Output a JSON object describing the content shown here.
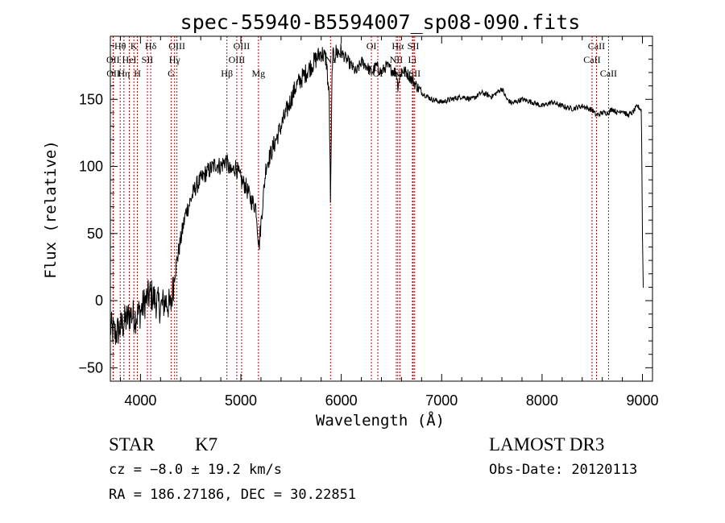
{
  "chart_data": {
    "type": "line",
    "title": "spec-55940-B5594007_sp08-090.fits",
    "xlabel": "Wavelength (Å)",
    "ylabel": "Flux (relative)",
    "xlim": [
      3700,
      9100
    ],
    "ylim": [
      -60,
      197
    ],
    "xticks": [
      4000,
      5000,
      6000,
      7000,
      8000,
      9000
    ],
    "xtick_labels": [
      "4000",
      "5000",
      "6000",
      "7000",
      "8000",
      "9000"
    ],
    "yticks": [
      -50,
      0,
      50,
      100,
      150
    ],
    "ytick_labels": [
      "−50",
      "0",
      "50",
      "100",
      "150"
    ],
    "line_color": "#000000",
    "marker_color": "#cc0000",
    "spectrum_anchor_points": {
      "wavelength": [
        3700,
        3750,
        3800,
        3850,
        3900,
        3950,
        4000,
        4050,
        4100,
        4150,
        4200,
        4250,
        4300,
        4340,
        4400,
        4450,
        4500,
        4550,
        4600,
        4650,
        4700,
        4750,
        4800,
        4850,
        4900,
        4950,
        5000,
        5050,
        5100,
        5150,
        5180,
        5250,
        5300,
        5350,
        5400,
        5450,
        5500,
        5550,
        5600,
        5650,
        5700,
        5750,
        5800,
        5850,
        5880,
        5893,
        5910,
        5950,
        6000,
        6050,
        6100,
        6150,
        6200,
        6250,
        6300,
        6350,
        6400,
        6450,
        6500,
        6550,
        6563,
        6600,
        6650,
        6700,
        6750,
        6800,
        6900,
        7000,
        7100,
        7200,
        7300,
        7400,
        7500,
        7600,
        7650,
        7700,
        7800,
        7900,
        8000,
        8100,
        8200,
        8300,
        8400,
        8500,
        8542,
        8600,
        8662,
        8700,
        8750,
        8800,
        8850,
        8900,
        8950,
        8990,
        9000,
        9010
      ],
      "flux": [
        -20,
        -25,
        -20,
        -15,
        -10,
        -12,
        -8,
        0,
        5,
        0,
        -5,
        0,
        -5,
        20,
        45,
        65,
        75,
        85,
        90,
        95,
        98,
        102,
        100,
        105,
        95,
        100,
        90,
        85,
        75,
        70,
        40,
        100,
        110,
        120,
        130,
        140,
        150,
        160,
        165,
        170,
        175,
        180,
        185,
        180,
        150,
        70,
        180,
        185,
        185,
        180,
        175,
        170,
        178,
        175,
        170,
        175,
        170,
        175,
        172,
        170,
        160,
        172,
        170,
        165,
        160,
        155,
        150,
        148,
        150,
        152,
        150,
        155,
        152,
        158,
        150,
        147,
        150,
        148,
        145,
        148,
        145,
        143,
        145,
        142,
        138,
        140,
        140,
        143,
        140,
        142,
        138,
        140,
        145,
        142,
        50,
        0
      ]
    },
    "annotations": [
      {
        "label": "Hθ",
        "wavelength": 3798,
        "row": 1
      },
      {
        "label": "OII",
        "wavelength": 3727,
        "row": 2
      },
      {
        "label": "OII",
        "wavelength": 3729,
        "row": 3
      },
      {
        "label": "K",
        "wavelength": 3934,
        "row": 1
      },
      {
        "label": "HeI",
        "wavelength": 3889,
        "row": 2
      },
      {
        "label": "Hη",
        "wavelength": 3835,
        "row": 3
      },
      {
        "label": "Hδ",
        "wavelength": 4102,
        "row": 1
      },
      {
        "label": "SII",
        "wavelength": 4069,
        "row": 2
      },
      {
        "label": "H",
        "wavelength": 3969,
        "row": 3
      },
      {
        "label": "OIII",
        "wavelength": 4363,
        "row": 1
      },
      {
        "label": "Hγ",
        "wavelength": 4340,
        "row": 2
      },
      {
        "label": "G",
        "wavelength": 4305,
        "row": 3
      },
      {
        "label": "OIII",
        "wavelength": 5007,
        "row": 1
      },
      {
        "label": "OIII",
        "wavelength": 4959,
        "row": 2
      },
      {
        "label": "Hβ",
        "wavelength": 4861,
        "row": 3
      },
      {
        "label": "Mg",
        "wavelength": 5175,
        "row": 3
      },
      {
        "label": "Na",
        "wavelength": 5893,
        "row": 2
      },
      {
        "label": "OI",
        "wavelength": 6300,
        "row": 1
      },
      {
        "label": "OI",
        "wavelength": 6364,
        "row": 3
      },
      {
        "label": "Hα",
        "wavelength": 6563,
        "row": 1
      },
      {
        "label": "NII",
        "wavelength": 6548,
        "row": 2
      },
      {
        "label": "NII",
        "wavelength": 6584,
        "row": 3
      },
      {
        "label": "SII",
        "wavelength": 6717,
        "row": 1
      },
      {
        "label": "Li",
        "wavelength": 6708,
        "row": 2
      },
      {
        "label": "SII",
        "wavelength": 6731,
        "row": 3
      },
      {
        "label": "CaII",
        "wavelength": 8542,
        "row": 1
      },
      {
        "label": "CaII",
        "wavelength": 8498,
        "row": 2
      },
      {
        "label": "CaII",
        "wavelength": 8662,
        "row": 3
      }
    ]
  },
  "info": {
    "class_label": "STAR",
    "subclass": "K7",
    "survey": "LAMOST DR3",
    "cz": "cz = −8.0 ± 19.2 km/s",
    "obs_date": "Obs-Date: 20120113",
    "coords": "RA = 186.27186, DEC =  30.22851"
  }
}
